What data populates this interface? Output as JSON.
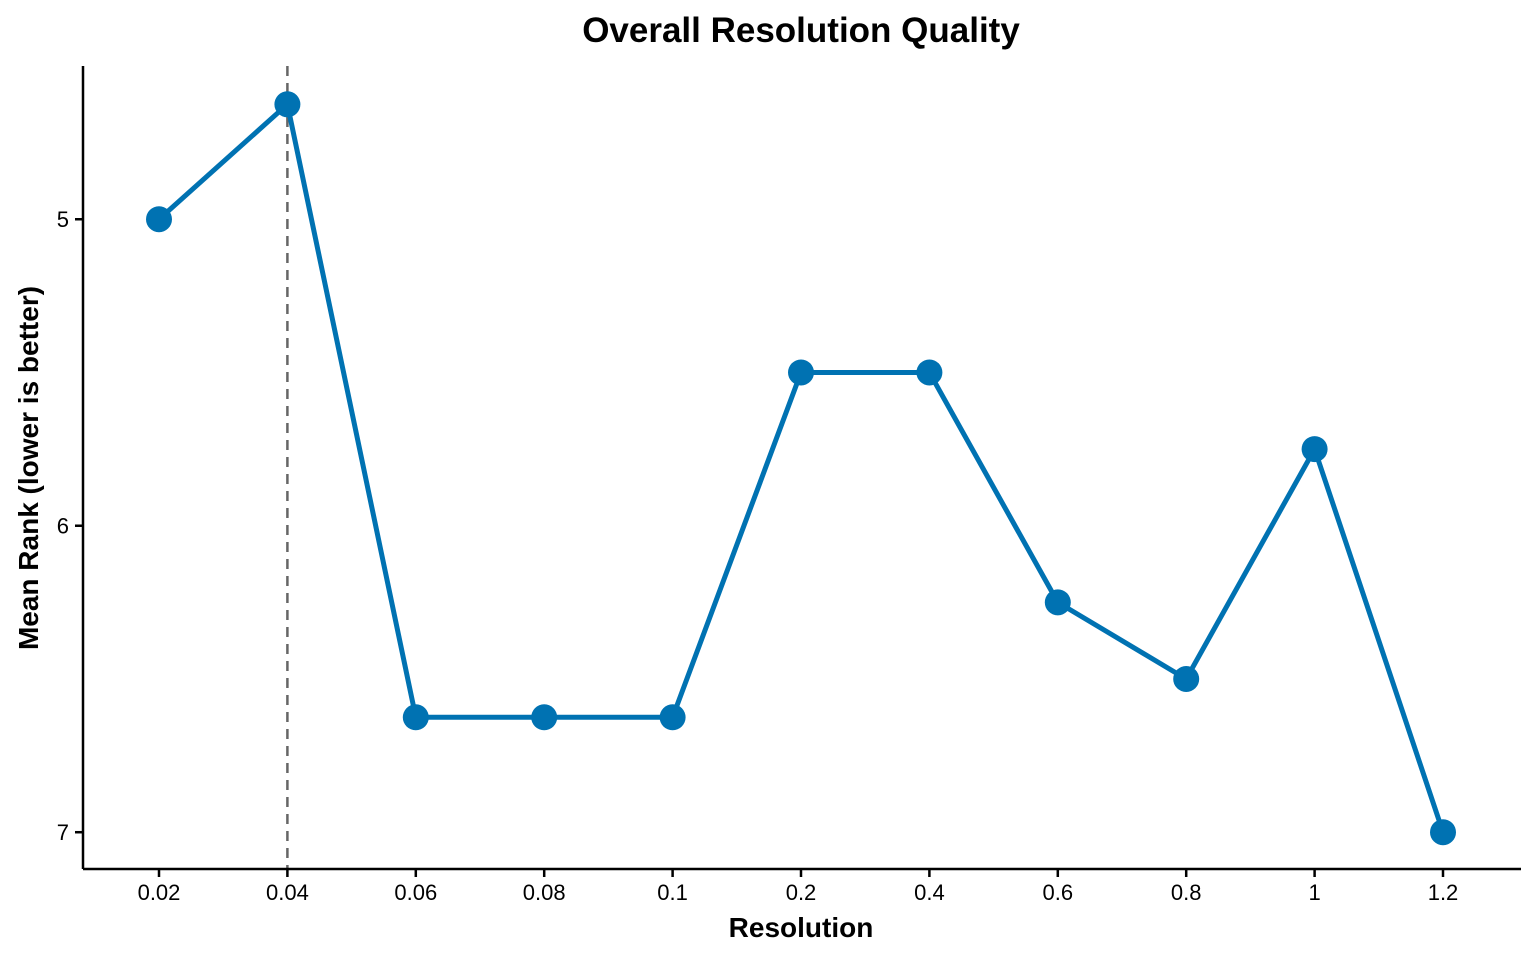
{
  "chart_data": {
    "type": "line",
    "title": "Overall Resolution Quality",
    "xlabel": "Resolution",
    "ylabel": "Mean Rank (lower is better)",
    "x_scale": "categorical",
    "categories": [
      "0.02",
      "0.04",
      "0.06",
      "0.08",
      "0.1",
      "0.2",
      "0.4",
      "0.6",
      "0.8",
      "1",
      "1.2"
    ],
    "series": [
      {
        "values": [
          5.0,
          4.625,
          6.625,
          6.625,
          6.625,
          5.5,
          5.5,
          6.25,
          6.5,
          5.75,
          7.0
        ],
        "color": "#0072B2",
        "markers": true
      }
    ],
    "y_reversed": true,
    "ylim": [
      4.5,
      7.12
    ],
    "yticks": [
      5,
      6,
      7
    ],
    "reference_line": {
      "x": "0.04",
      "style": "dashed",
      "color": "#666666"
    },
    "grid": false,
    "legend": "none"
  }
}
